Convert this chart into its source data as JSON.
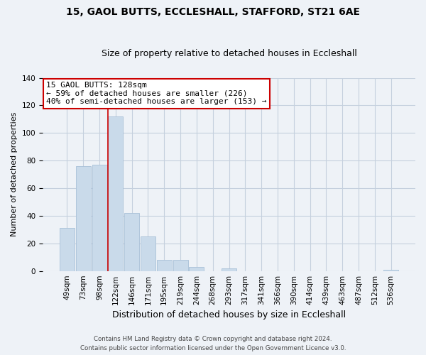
{
  "title": "15, GAOL BUTTS, ECCLESHALL, STAFFORD, ST21 6AE",
  "subtitle": "Size of property relative to detached houses in Eccleshall",
  "xlabel": "Distribution of detached houses by size in Eccleshall",
  "ylabel": "Number of detached properties",
  "bar_labels": [
    "49sqm",
    "73sqm",
    "98sqm",
    "122sqm",
    "146sqm",
    "171sqm",
    "195sqm",
    "219sqm",
    "244sqm",
    "268sqm",
    "293sqm",
    "317sqm",
    "341sqm",
    "366sqm",
    "390sqm",
    "414sqm",
    "439sqm",
    "463sqm",
    "487sqm",
    "512sqm",
    "536sqm"
  ],
  "bar_values": [
    31,
    76,
    77,
    112,
    42,
    25,
    8,
    8,
    3,
    0,
    2,
    0,
    0,
    0,
    0,
    0,
    0,
    0,
    0,
    0,
    1
  ],
  "bar_color": "#c9daea",
  "bar_edge_color": "#a8c0d8",
  "vline_color": "#cc0000",
  "vline_x_idx": 3,
  "annotation_text": "15 GAOL BUTTS: 128sqm\n← 59% of detached houses are smaller (226)\n40% of semi-detached houses are larger (153) →",
  "annotation_box_color": "#ffffff",
  "annotation_box_edge": "#cc0000",
  "ylim": [
    0,
    140
  ],
  "yticks": [
    0,
    20,
    40,
    60,
    80,
    100,
    120,
    140
  ],
  "footnote1": "Contains HM Land Registry data © Crown copyright and database right 2024.",
  "footnote2": "Contains public sector information licensed under the Open Government Licence v3.0.",
  "bg_color": "#eef2f7",
  "plot_bg_color": "#eef2f7",
  "grid_color": "#c5d0de",
  "title_fontsize": 10,
  "subtitle_fontsize": 9,
  "xlabel_fontsize": 9,
  "ylabel_fontsize": 8,
  "tick_fontsize": 7.5,
  "ann_fontsize": 8
}
